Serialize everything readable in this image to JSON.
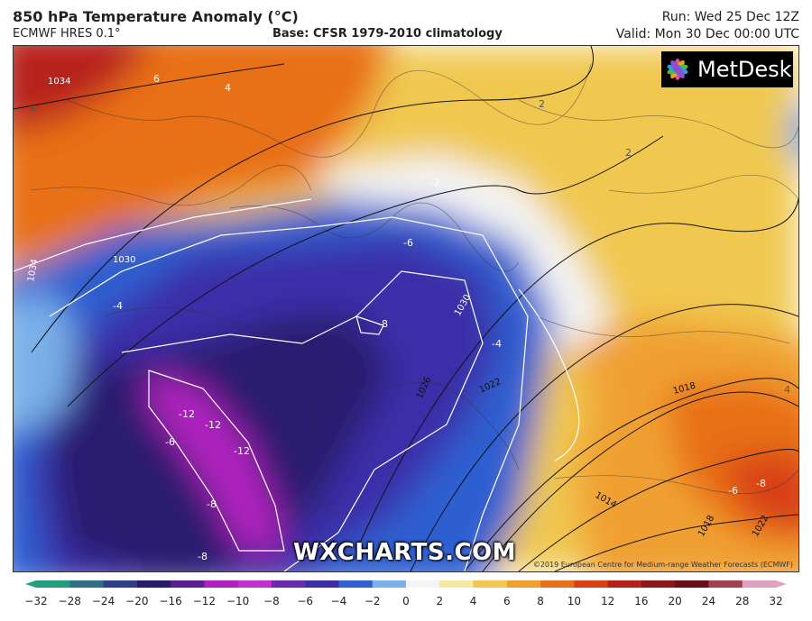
{
  "header": {
    "title": "850 hPa Temperature Anomaly (°C)",
    "model": "ECMWF HRES 0.1°",
    "base": "Base: CFSR 1979-2010 climatology",
    "run": "Run: Wed 25 Dec 12Z",
    "valid": "Valid: Mon 30 Dec 00:00 UTC"
  },
  "logo": {
    "text": "MetDesk",
    "icon": "metdesk-flower-icon"
  },
  "watermark": "WXCHARTS.COM",
  "copyright": "©2019 European Centre for Medium-range Weather Forecasts (ECMWF)",
  "colorbar": {
    "ticks": [
      "−32",
      "−28",
      "−24",
      "−20",
      "−16",
      "−12",
      "−10",
      "−8",
      "−6",
      "−4",
      "−2",
      "0",
      "2",
      "4",
      "6",
      "8",
      "10",
      "12",
      "16",
      "20",
      "24",
      "28",
      "32"
    ],
    "colors": [
      "#1f9f7a",
      "#2f6f86",
      "#2f3f8a",
      "#2a1a6e",
      "#5a1f8f",
      "#b020c0",
      "#c42fd0",
      "#6a2bb0",
      "#3a2fa8",
      "#2f5fd0",
      "#7ab0e8",
      "#f4f4f4",
      "#f4e8a0",
      "#f0c850",
      "#f0a030",
      "#e87018",
      "#d84014",
      "#b8201a",
      "#8a1818",
      "#6a1016",
      "#a04050",
      "#e0a0c0"
    ]
  },
  "map": {
    "anomaly_labels": [
      "6",
      "4",
      "-2",
      "2",
      "2",
      "-6",
      "-8",
      "-4",
      "-4",
      "-6",
      "-12",
      "-12",
      "-12",
      "-8",
      "-8",
      "-6",
      "-8",
      "4",
      "4"
    ],
    "isobar_labels": [
      "1034",
      "1034",
      "1030",
      "1030",
      "1026",
      "1022",
      "1018",
      "1014",
      "1018",
      "1022"
    ],
    "regions": [
      "warm-north",
      "cold-center",
      "cold-core",
      "warm-east",
      "warm-southeast"
    ]
  }
}
